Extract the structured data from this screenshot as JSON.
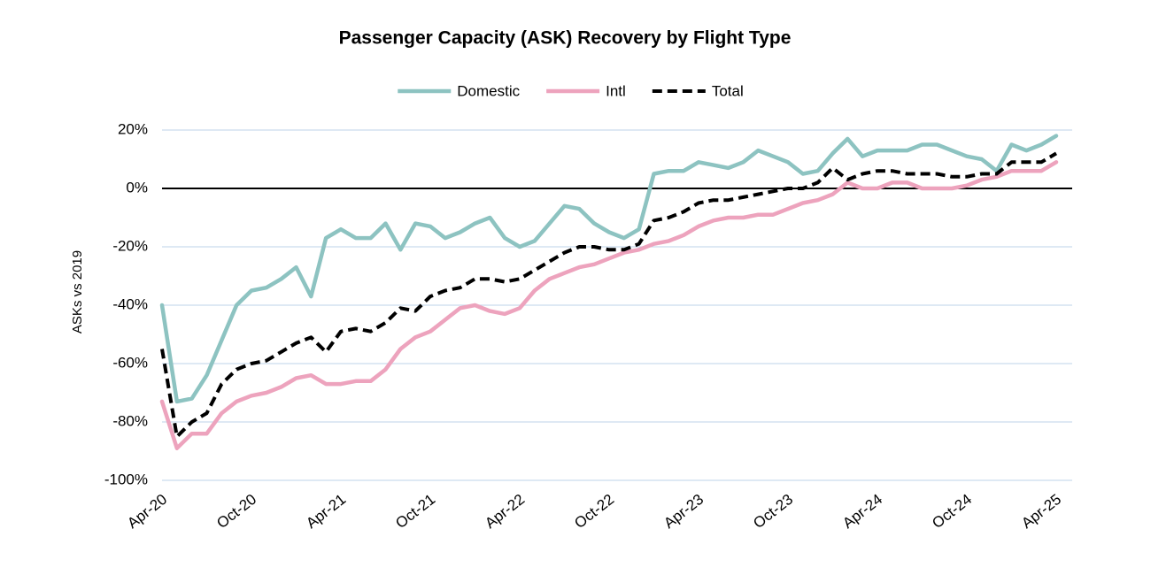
{
  "chart_data": {
    "type": "line",
    "title": "Passenger Capacity (ASK) Recovery by Flight Type",
    "y_label": "ASKs vs 2019",
    "categories": [
      "Apr-20",
      null,
      null,
      null,
      null,
      null,
      "Oct-20",
      null,
      null,
      null,
      null,
      null,
      "Apr-21",
      null,
      null,
      null,
      null,
      null,
      "Oct-21",
      null,
      null,
      null,
      null,
      null,
      "Apr-22",
      null,
      null,
      null,
      null,
      null,
      "Oct-22",
      null,
      null,
      null,
      null,
      null,
      "Apr-23",
      null,
      null,
      null,
      null,
      null,
      "Oct-23",
      null,
      null,
      null,
      null,
      null,
      "Apr-24",
      null,
      null,
      null,
      null,
      null,
      "Oct-24",
      null,
      null,
      null,
      null,
      null,
      "Apr-25"
    ],
    "series": [
      {
        "name": "Domestic",
        "color": "#8dc3c1",
        "dashed": false,
        "values": [
          -40,
          -73,
          -72,
          -64,
          -52,
          -40,
          -35,
          -34,
          -31,
          -27,
          -37,
          -17,
          -14,
          -17,
          -17,
          -12,
          -21,
          -12,
          -13,
          -17,
          -15,
          -12,
          -10,
          -17,
          -20,
          -18,
          -12,
          -6,
          -7,
          -12,
          -15,
          -17,
          -14,
          5,
          6,
          6,
          9,
          8,
          7,
          9,
          13,
          11,
          9,
          5,
          6,
          12,
          17,
          11,
          13,
          13,
          13,
          15,
          15,
          13,
          11,
          10,
          6,
          15,
          13,
          15,
          18
        ]
      },
      {
        "name": "Intl",
        "color": "#eda3bd",
        "dashed": false,
        "values": [
          -73,
          -89,
          -84,
          -84,
          -77,
          -73,
          -71,
          -70,
          -68,
          -65,
          -64,
          -67,
          -67,
          -66,
          -66,
          -62,
          -55,
          -51,
          -49,
          -45,
          -41,
          -40,
          -42,
          -43,
          -41,
          -35,
          -31,
          -29,
          -27,
          -26,
          -24,
          -22,
          -21,
          -19,
          -18,
          -16,
          -13,
          -11,
          -10,
          -10,
          -9,
          -9,
          -7,
          -5,
          -4,
          -2,
          2,
          0,
          0,
          2,
          2,
          0,
          0,
          0,
          1,
          3,
          4,
          6,
          6,
          6,
          9
        ]
      },
      {
        "name": "Total",
        "color": "#000000",
        "dashed": true,
        "values": [
          -55,
          -85,
          -80,
          -77,
          -67,
          -62,
          -60,
          -59,
          -56,
          -53,
          -51,
          -56,
          -49,
          -48,
          -49,
          -46,
          -41,
          -42,
          -37,
          -35,
          -34,
          -31,
          -31,
          -32,
          -31,
          -28,
          -25,
          -22,
          -20,
          -20,
          -21,
          -21,
          -19,
          -11,
          -10,
          -8,
          -5,
          -4,
          -4,
          -3,
          -2,
          -1,
          0,
          0,
          2,
          7,
          3,
          5,
          6,
          6,
          5,
          5,
          5,
          4,
          4,
          5,
          5,
          9,
          9,
          9,
          12
        ]
      }
    ],
    "ylim": [
      -100,
      20
    ],
    "yticks": [
      {
        "value": -100,
        "label": "-100%"
      },
      {
        "value": -80,
        "label": "-80%"
      },
      {
        "value": -60,
        "label": "-60%"
      },
      {
        "value": -40,
        "label": "-40%"
      },
      {
        "value": -20,
        "label": "-20%"
      },
      {
        "value": 0,
        "label": "0%"
      },
      {
        "value": 20,
        "label": "20%"
      }
    ],
    "grid": true,
    "legend": "top"
  }
}
